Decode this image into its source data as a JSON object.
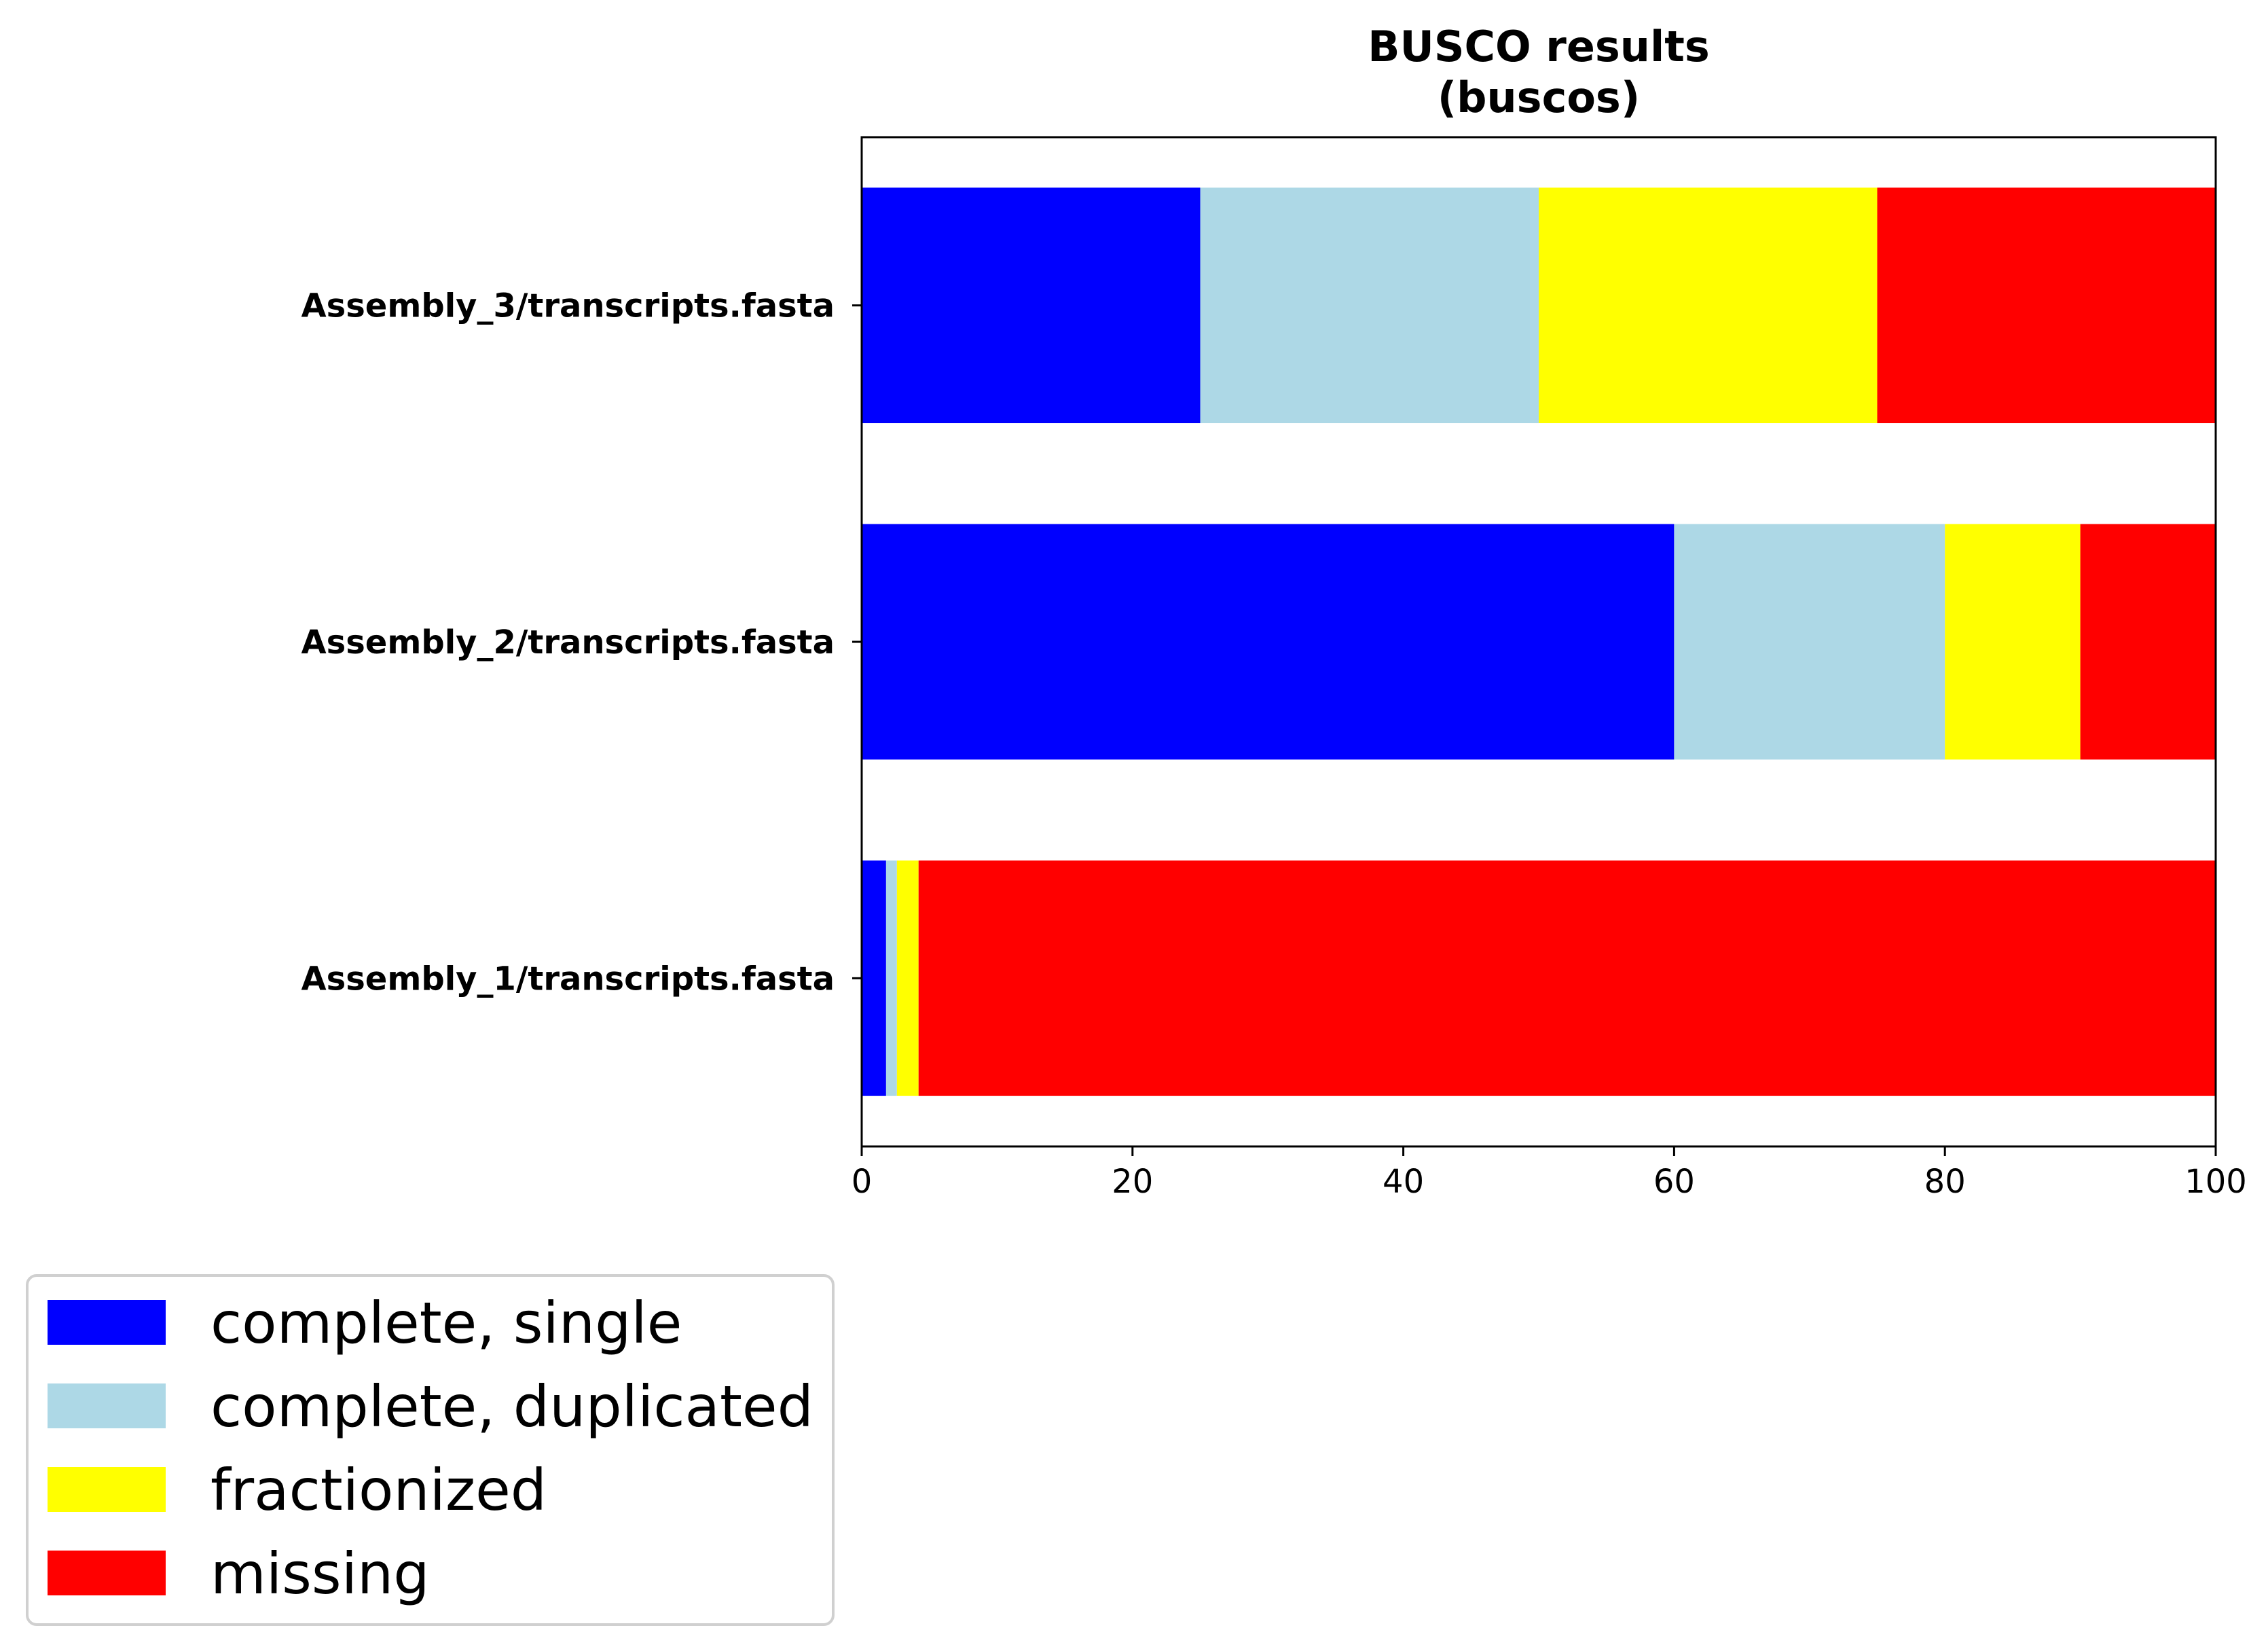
{
  "chart_data": {
    "type": "bar",
    "orientation": "horizontal",
    "stacked": true,
    "title": "BUSCO results",
    "subtitle": "(buscos)",
    "xlabel": "",
    "ylabel": "",
    "xlim": [
      0,
      100
    ],
    "xticks": [
      0,
      20,
      40,
      60,
      80,
      100
    ],
    "grid": false,
    "legend_position": "bottom-left, outside plot",
    "categories": [
      "Assembly_1/transcripts.fasta",
      "Assembly_2/transcripts.fasta",
      "Assembly_3/transcripts.fasta"
    ],
    "series": [
      {
        "name": "complete, single",
        "color": "#0000ff",
        "values": [
          1.8,
          60,
          25
        ]
      },
      {
        "name": "complete, duplicated",
        "color": "#add8e6",
        "values": [
          0.8,
          20,
          25
        ]
      },
      {
        "name": "fractionized",
        "color": "#ffff00",
        "values": [
          1.6,
          10,
          25
        ]
      },
      {
        "name": "missing",
        "color": "#ff0000",
        "values": [
          95.8,
          10,
          25
        ]
      }
    ]
  }
}
